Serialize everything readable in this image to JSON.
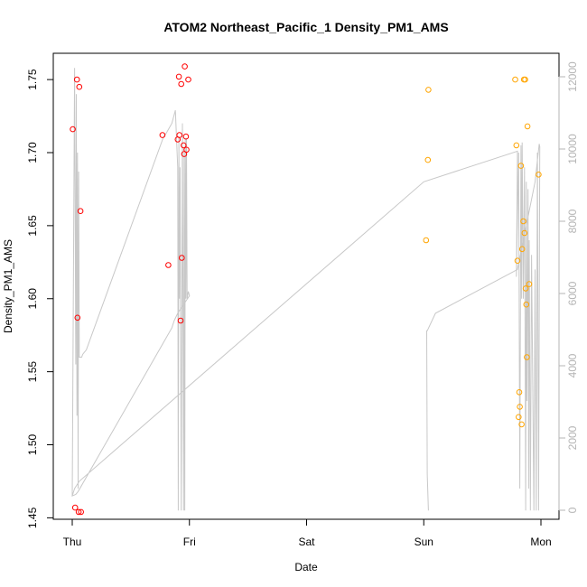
{
  "chart_data": {
    "type": "scatter",
    "title": "ATOM2 Northeast_Pacific_1 Density_PM1_AMS",
    "xlabel": "Date",
    "ylabel": "Density_PM1_AMS",
    "xlim": [
      0,
      4.06
    ],
    "ylim": [
      1.449,
      1.768
    ],
    "x_ticks": [
      {
        "value": 0,
        "label": "Thu"
      },
      {
        "value": 1,
        "label": "Fri"
      },
      {
        "value": 2,
        "label": "Sat"
      },
      {
        "value": 3,
        "label": "Sun"
      },
      {
        "value": 4,
        "label": "Mon"
      }
    ],
    "y_ticks": [
      {
        "value": 1.45,
        "label": "1.45"
      },
      {
        "value": 1.5,
        "label": "1.50"
      },
      {
        "value": 1.55,
        "label": "1.55"
      },
      {
        "value": 1.6,
        "label": "1.60"
      },
      {
        "value": 1.65,
        "label": "1.65"
      },
      {
        "value": 1.7,
        "label": "1.70"
      },
      {
        "value": 1.75,
        "label": "1.75"
      }
    ],
    "right_axis": {
      "color": "#b4b4b4",
      "ylim": [
        -250,
        12650
      ],
      "ticks": [
        {
          "value": 0,
          "label": "0"
        },
        {
          "value": 2000,
          "label": "2000"
        },
        {
          "value": 4000,
          "label": "4000"
        },
        {
          "value": 6000,
          "label": "6000"
        },
        {
          "value": 8000,
          "label": "8000"
        },
        {
          "value": 10000,
          "label": "10000"
        },
        {
          "value": 12000,
          "label": "12000"
        }
      ]
    },
    "series": [
      {
        "color": "#ff0000",
        "x": [
          0.005,
          0.025,
          0.04,
          0.045,
          0.055,
          0.06,
          0.07,
          0.075,
          0.77,
          0.82,
          0.9,
          0.91,
          0.915,
          0.925,
          0.93,
          0.935,
          0.95,
          0.955,
          0.96,
          0.97,
          0.975,
          0.99
        ],
        "y": [
          1.716,
          1.457,
          1.75,
          1.587,
          1.454,
          1.745,
          1.66,
          1.454,
          1.712,
          1.623,
          1.709,
          1.752,
          1.712,
          1.585,
          1.747,
          1.628,
          1.705,
          1.699,
          1.759,
          1.711,
          1.702,
          1.75
        ]
      },
      {
        "color": "#ffa500",
        "x": [
          3.02,
          3.035,
          3.04,
          3.78,
          3.79,
          3.8,
          3.81,
          3.815,
          3.82,
          3.83,
          3.835,
          3.84,
          3.85,
          3.855,
          3.86,
          3.865,
          3.87,
          3.875,
          3.88,
          3.885,
          3.9,
          3.98
        ],
        "y": [
          1.64,
          1.695,
          1.743,
          1.75,
          1.705,
          1.626,
          1.519,
          1.536,
          1.526,
          1.691,
          1.514,
          1.634,
          1.653,
          1.75,
          1.645,
          1.75,
          1.607,
          1.596,
          1.56,
          1.718,
          1.61,
          1.685
        ]
      }
    ],
    "background_line": {
      "color": "#c8c8c8",
      "x": [
        0,
        0.02,
        0.03,
        0.035,
        0.04,
        0.045,
        0.05,
        0.055,
        0.06,
        0.065,
        0.07,
        0.075,
        0.08,
        0.09,
        0.1,
        0.12,
        0.78,
        0.8,
        0.85,
        0.88,
        0.9,
        0.905,
        0.91,
        0.915,
        0.92,
        0.93,
        0.94,
        0.95,
        0.955,
        0.96,
        0.965,
        0.97,
        0.975,
        0.98,
        0.99,
        1.0,
        0.9,
        0.87,
        0.85,
        0.05,
        0.03,
        0.0,
        0.02,
        0.06,
        3.0,
        3.8,
        3.79,
        3.81,
        3.82,
        3.83,
        3.835,
        3.84,
        3.85,
        3.86,
        3.87,
        3.875,
        3.88,
        3.89,
        3.895,
        3.9,
        3.91,
        3.92,
        3.94,
        3.95,
        3.96,
        3.97,
        3.98,
        3.99,
        3.985,
        3.95,
        3.9,
        3.85,
        3.8,
        3.1,
        3.03,
        3.025,
        3.03,
        3.04
      ],
      "y": [
        1.465,
        1.758,
        1.555,
        1.74,
        1.52,
        1.7,
        1.47,
        1.687,
        1.56,
        1.56,
        1.56,
        1.56,
        1.56,
        1.562,
        1.563,
        1.565,
        1.711,
        1.713,
        1.72,
        1.729,
        1.69,
        1.455,
        1.71,
        1.6,
        1.69,
        1.455,
        1.72,
        1.455,
        1.7,
        1.455,
        1.71,
        1.6,
        1.71,
        1.6,
        1.605,
        1.602,
        1.59,
        1.585,
        1.58,
        1.468,
        1.466,
        1.465,
        1.47,
        1.475,
        1.68,
        1.701,
        1.615,
        1.7,
        1.47,
        1.705,
        1.6,
        1.707,
        1.6,
        1.69,
        1.455,
        1.68,
        1.53,
        1.675,
        1.47,
        1.64,
        1.455,
        1.63,
        1.455,
        1.62,
        1.455,
        1.7,
        1.455,
        1.704,
        1.706,
        1.68,
        1.66,
        1.64,
        1.62,
        1.59,
        1.578,
        1.578,
        1.48,
        1.455
      ]
    }
  }
}
